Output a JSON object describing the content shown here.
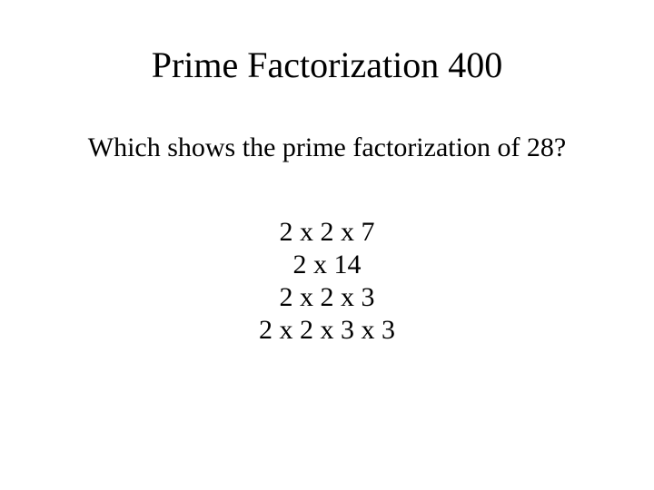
{
  "title": {
    "text": "Prime Factorization 400",
    "fontsize": 40,
    "color": "#000000"
  },
  "question": {
    "text": "Which shows the prime factorization of 28?",
    "fontsize": 30,
    "color": "#000000"
  },
  "options": [
    "2 x 2 x 7",
    "2 x 14",
    "2 x 2 x 3",
    "2 x 2 x 3 x 3"
  ],
  "options_style": {
    "fontsize": 30,
    "color": "#000000"
  },
  "background_color": "#ffffff",
  "font_family": "Times New Roman"
}
